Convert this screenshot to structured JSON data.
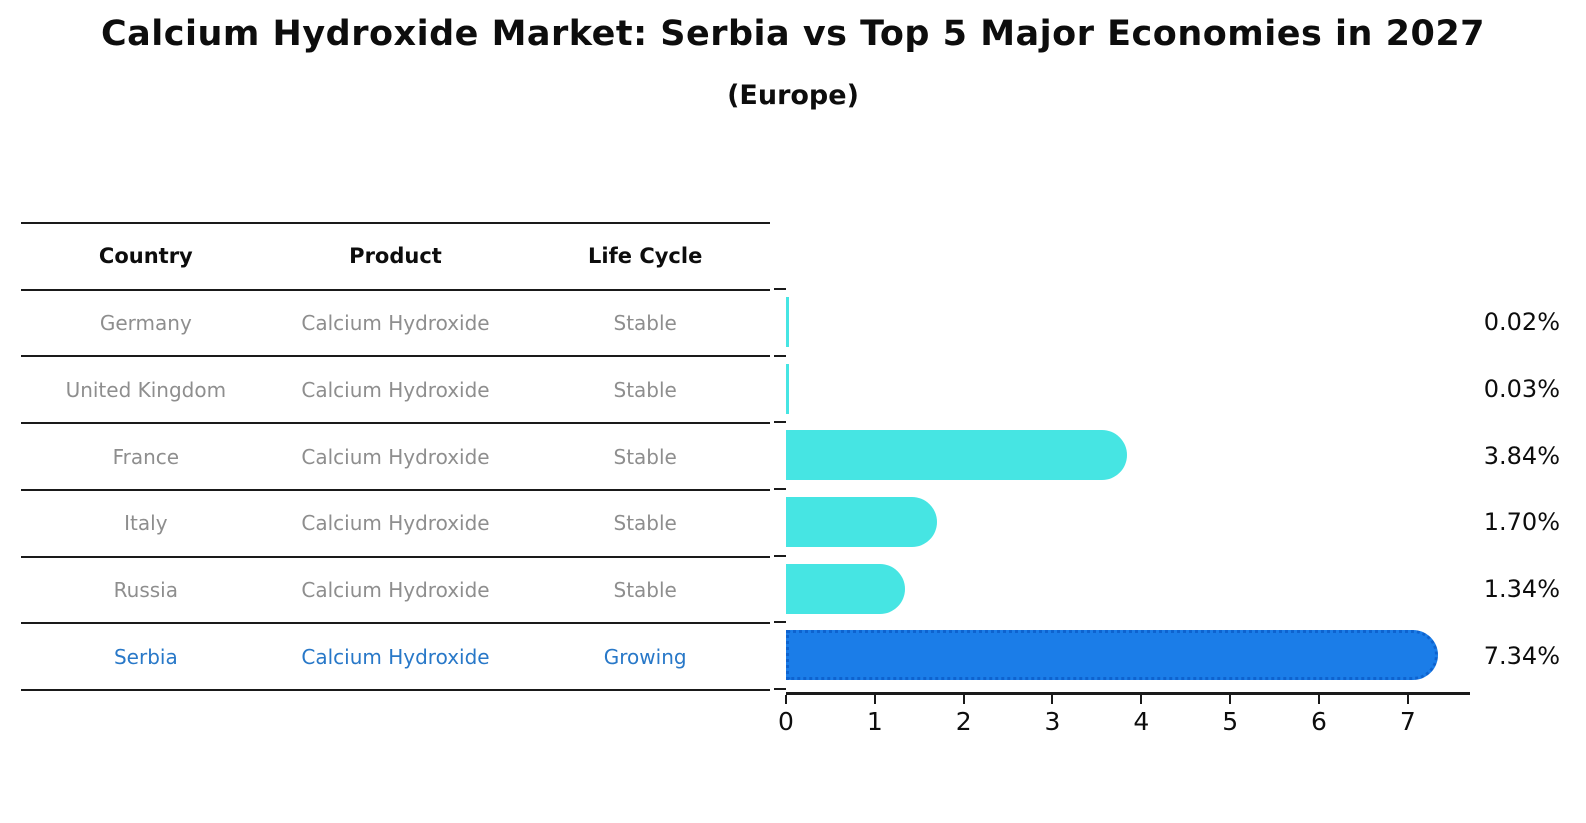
{
  "title": "Calcium Hydroxide Market: Serbia vs Top 5 Major Economies in 2027",
  "subtitle": "(Europe)",
  "table": {
    "headers": [
      "Country",
      "Product",
      "Life Cycle"
    ],
    "rows": [
      {
        "country": "Germany",
        "product": "Calcium Hydroxide",
        "life_cycle": "Stable",
        "highlighted": false
      },
      {
        "country": "United Kingdom",
        "product": "Calcium Hydroxide",
        "life_cycle": "Stable",
        "highlighted": false
      },
      {
        "country": "France",
        "product": "Calcium Hydroxide",
        "life_cycle": "Stable",
        "highlighted": false
      },
      {
        "country": "Italy",
        "product": "Calcium Hydroxide",
        "life_cycle": "Stable",
        "highlighted": false
      },
      {
        "country": "Russia",
        "product": "Calcium Hydroxide",
        "life_cycle": "Stable",
        "highlighted": false
      },
      {
        "country": "Serbia",
        "product": "Calcium Hydroxide",
        "life_cycle": "Growing",
        "highlighted": true
      }
    ]
  },
  "chart_data": {
    "type": "bar",
    "orientation": "horizontal",
    "title": "Calcium Hydroxide Market: Serbia vs Top 5 Major Economies in 2027 (Europe)",
    "categories": [
      "Germany",
      "United Kingdom",
      "France",
      "Italy",
      "Russia",
      "Serbia"
    ],
    "values": [
      0.02,
      0.03,
      3.84,
      1.7,
      1.34,
      7.34
    ],
    "value_labels": [
      "0.02%",
      "0.03%",
      "3.84%",
      "1.70%",
      "1.34%",
      "7.34%"
    ],
    "xticks": [
      0,
      1,
      2,
      3,
      4,
      5,
      6,
      7
    ],
    "xlim": [
      0,
      7.7
    ],
    "xlabel": "",
    "ylabel": "",
    "grid": false,
    "legend": false,
    "bar_color": "#46e5e3",
    "highlight_color": "#1b7de8",
    "highlight_border_color": "#0e63cf",
    "highlight_index": 5,
    "highlight_text_color": "#2878c8"
  }
}
